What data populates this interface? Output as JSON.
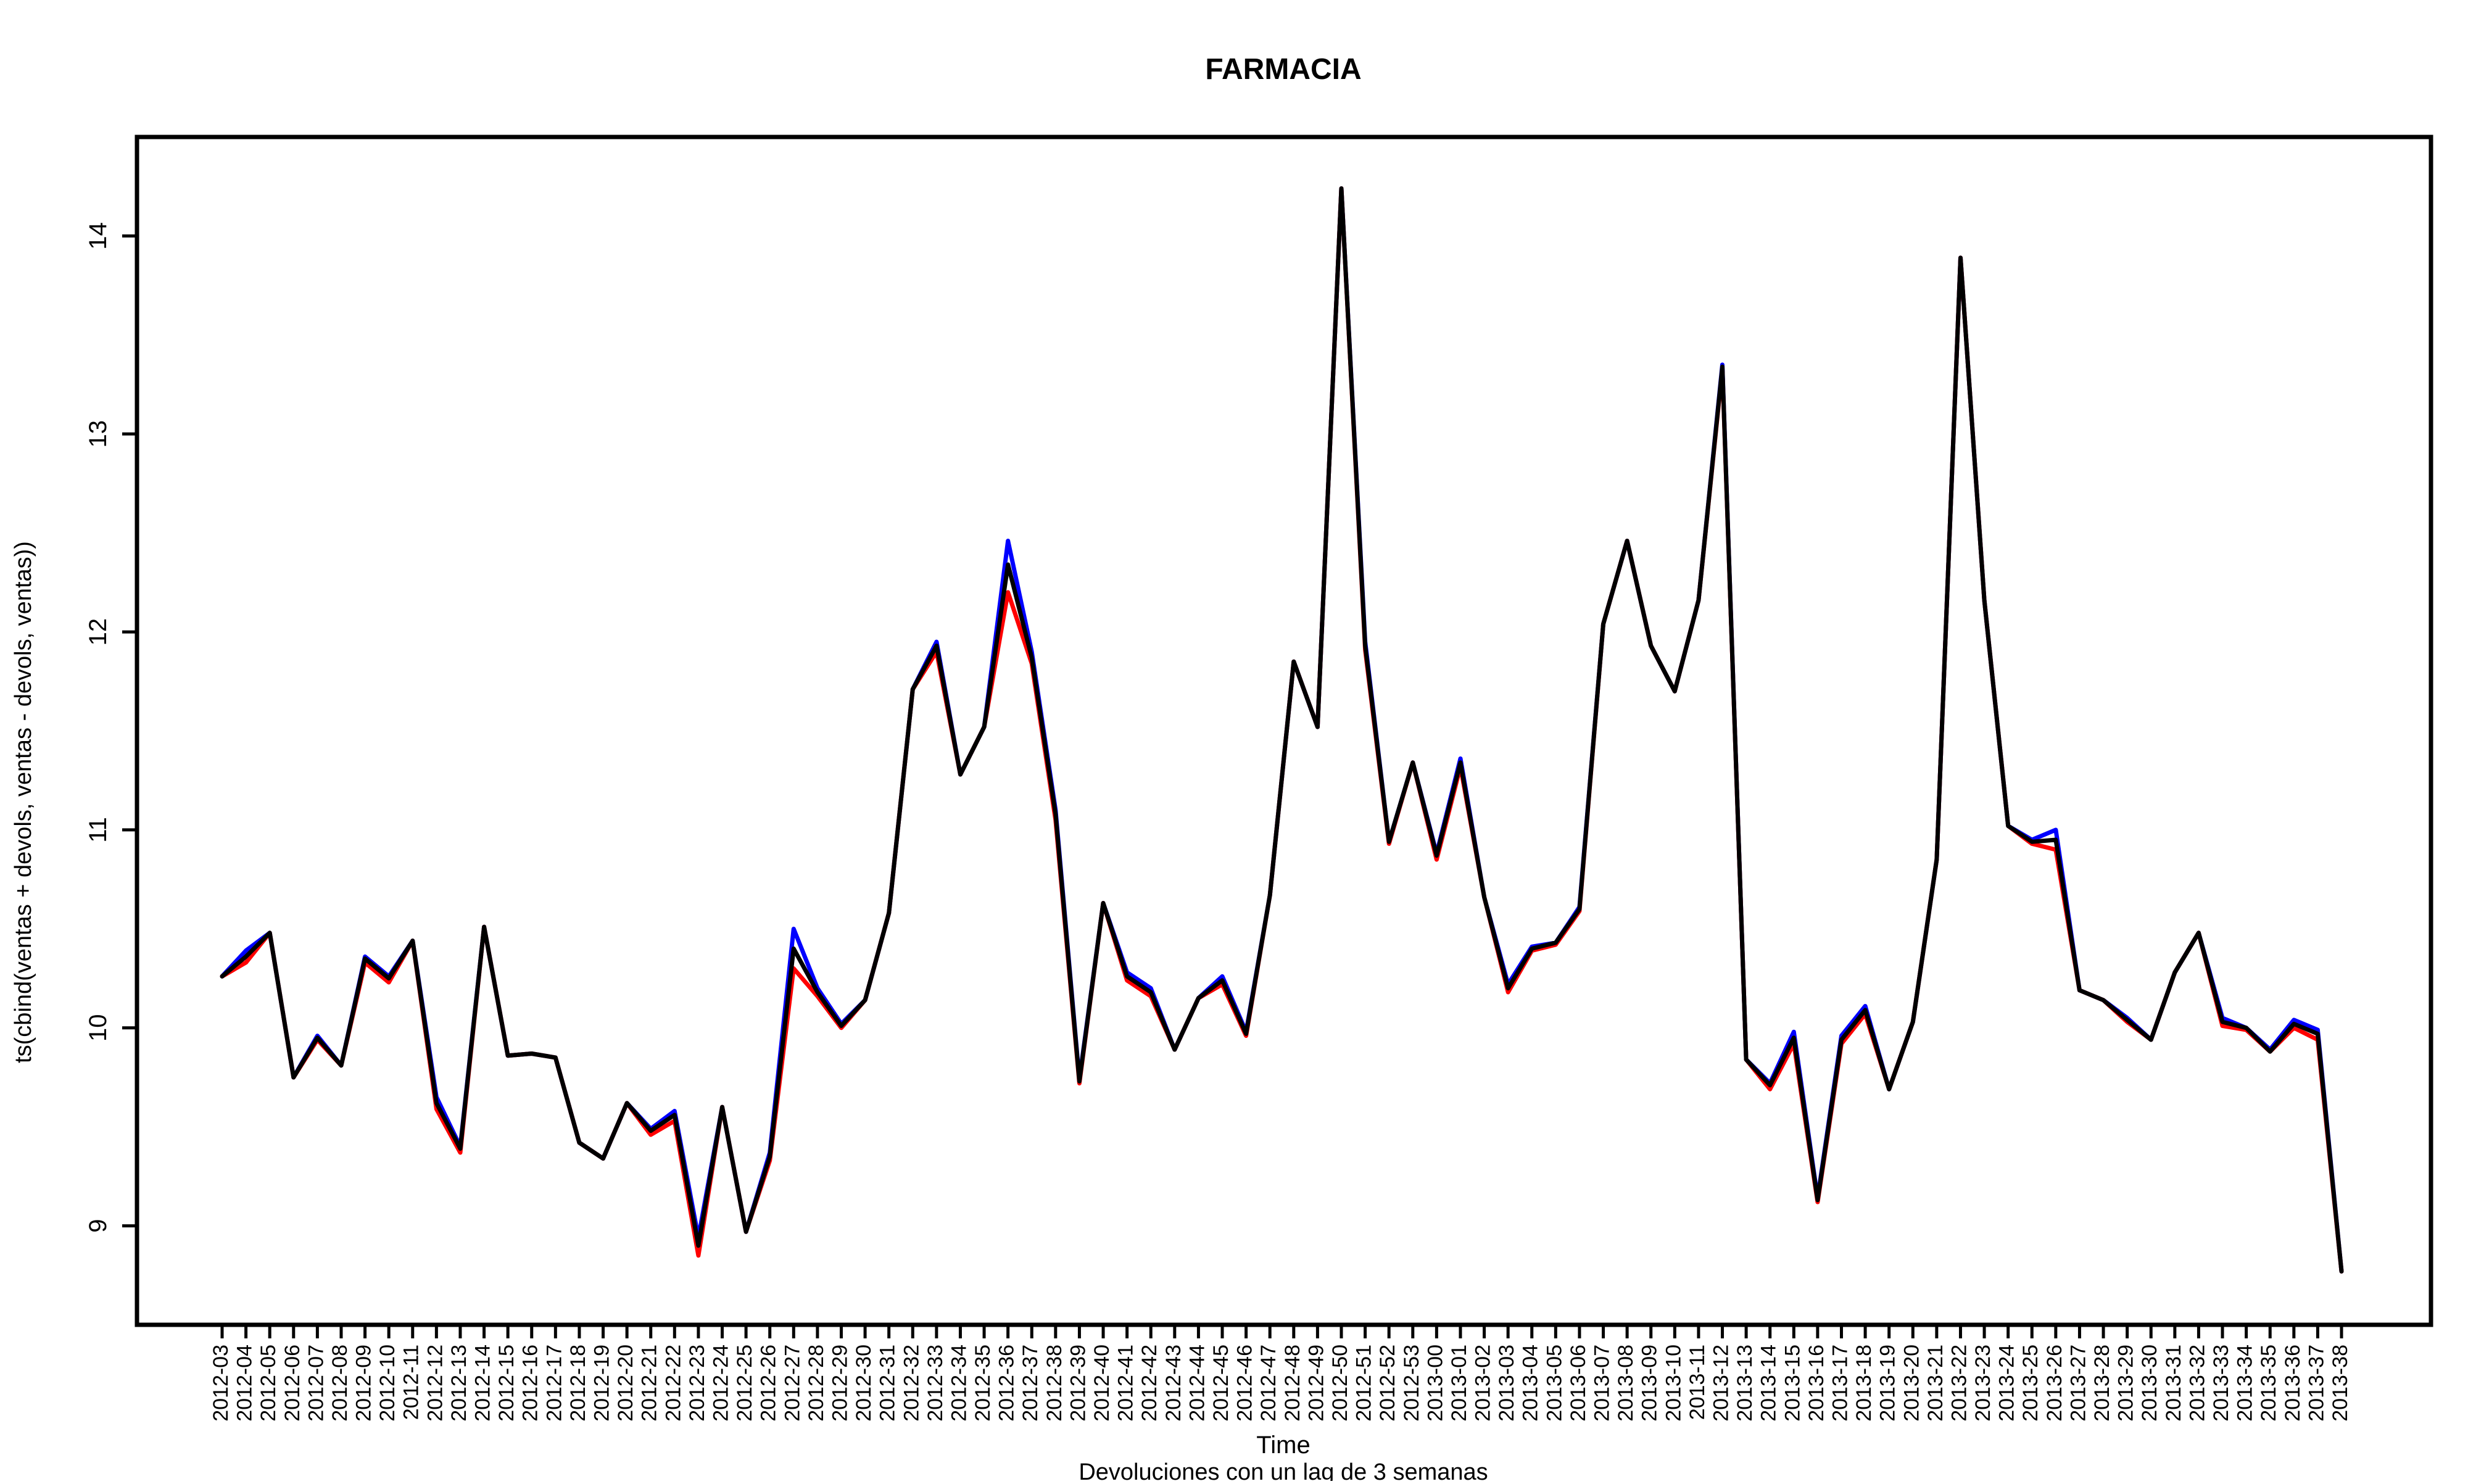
{
  "chart_data": {
    "type": "line",
    "title": "FARMACIA",
    "xlabel": "Time",
    "subtitle": "Devoluciones con un lag de 3 semanas",
    "ylabel": "ts(cbind(ventas + devols, ventas - devols, ventas))",
    "ylim": [
      8.5,
      14.5
    ],
    "yticks": [
      9,
      10,
      11,
      12,
      13,
      14
    ],
    "grid": false,
    "categories": [
      "2012-03",
      "2012-04",
      "2012-05",
      "2012-06",
      "2012-07",
      "2012-08",
      "2012-09",
      "2012-10",
      "2012-11",
      "2012-12",
      "2012-13",
      "2012-14",
      "2012-15",
      "2012-16",
      "2012-17",
      "2012-18",
      "2012-19",
      "2012-20",
      "2012-21",
      "2012-22",
      "2012-23",
      "2012-24",
      "2012-25",
      "2012-26",
      "2012-27",
      "2012-28",
      "2012-29",
      "2012-30",
      "2012-31",
      "2012-32",
      "2012-33",
      "2012-34",
      "2012-35",
      "2012-36",
      "2012-37",
      "2012-38",
      "2012-39",
      "2012-40",
      "2012-41",
      "2012-42",
      "2012-43",
      "2012-44",
      "2012-45",
      "2012-46",
      "2012-47",
      "2012-48",
      "2012-49",
      "2012-50",
      "2012-51",
      "2012-52",
      "2012-53",
      "2013-00",
      "2013-01",
      "2013-02",
      "2013-03",
      "2013-04",
      "2013-05",
      "2013-06",
      "2013-07",
      "2013-08",
      "2013-09",
      "2013-10",
      "2013-11",
      "2013-12",
      "2013-13",
      "2013-14",
      "2013-15",
      "2013-16",
      "2013-17",
      "2013-18",
      "2013-19",
      "2013-20",
      "2013-21",
      "2013-22",
      "2013-23",
      "2013-24",
      "2013-25",
      "2013-26",
      "2013-27",
      "2013-28",
      "2013-29",
      "2013-30",
      "2013-31",
      "2013-32",
      "2013-33",
      "2013-34",
      "2013-35",
      "2013-36",
      "2013-37",
      "2013-38"
    ],
    "series": [
      {
        "color": "#0000ff",
        "values": [
          10.26,
          10.39,
          10.48,
          9.75,
          9.96,
          9.81,
          10.36,
          10.26,
          10.44,
          9.65,
          9.4,
          10.51,
          9.86,
          9.87,
          9.85,
          9.42,
          9.34,
          9.62,
          9.49,
          9.58,
          8.94,
          9.6,
          8.97,
          9.37,
          10.5,
          10.2,
          10.02,
          10.14,
          10.58,
          11.71,
          11.95,
          11.28,
          11.52,
          12.46,
          11.9,
          11.1,
          9.74,
          10.63,
          10.28,
          10.2,
          9.89,
          10.15,
          10.26,
          9.98,
          10.67,
          11.85,
          11.52,
          14.24,
          11.95,
          10.94,
          11.34,
          10.88,
          11.36,
          10.66,
          10.22,
          10.41,
          10.43,
          10.61,
          12.04,
          12.46,
          11.93,
          11.7,
          12.16,
          13.35,
          9.84,
          9.72,
          9.98,
          9.14,
          9.96,
          10.11,
          9.69,
          10.03,
          10.85,
          13.89,
          12.16,
          11.02,
          10.95,
          11.0,
          10.19,
          10.14,
          10.05,
          9.94,
          10.28,
          10.48,
          10.05,
          10.0,
          9.89,
          10.04,
          9.99,
          8.77
        ]
      },
      {
        "color": "#ff0000",
        "values": [
          10.26,
          10.33,
          10.48,
          9.75,
          9.94,
          9.81,
          10.33,
          10.23,
          10.44,
          9.59,
          9.37,
          10.51,
          9.86,
          9.87,
          9.85,
          9.42,
          9.34,
          9.62,
          9.46,
          9.53,
          8.85,
          9.6,
          8.97,
          9.33,
          10.3,
          10.16,
          10.0,
          10.14,
          10.58,
          11.71,
          11.9,
          11.28,
          11.52,
          12.2,
          11.84,
          11.05,
          9.72,
          10.63,
          10.24,
          10.16,
          9.89,
          10.15,
          10.22,
          9.96,
          10.67,
          11.85,
          11.52,
          14.24,
          11.91,
          10.93,
          11.34,
          10.85,
          11.32,
          10.66,
          10.18,
          10.39,
          10.42,
          10.59,
          12.04,
          12.46,
          11.93,
          11.7,
          12.16,
          13.33,
          9.84,
          9.69,
          9.92,
          9.12,
          9.92,
          10.07,
          9.69,
          10.03,
          10.85,
          13.89,
          12.16,
          11.02,
          10.93,
          10.9,
          10.19,
          10.14,
          10.03,
          9.94,
          10.28,
          10.48,
          10.01,
          9.99,
          9.88,
          10.0,
          9.94,
          8.77
        ]
      },
      {
        "color": "#000000",
        "values": [
          10.26,
          10.36,
          10.48,
          9.75,
          9.95,
          9.81,
          10.35,
          10.25,
          10.44,
          9.62,
          9.39,
          10.51,
          9.86,
          9.87,
          9.85,
          9.42,
          9.34,
          9.62,
          9.48,
          9.56,
          8.9,
          9.6,
          8.97,
          9.35,
          10.4,
          10.18,
          10.01,
          10.14,
          10.58,
          11.71,
          11.93,
          11.28,
          11.52,
          12.34,
          11.87,
          11.08,
          9.73,
          10.63,
          10.26,
          10.18,
          9.89,
          10.15,
          10.24,
          9.97,
          10.67,
          11.85,
          11.52,
          14.24,
          11.93,
          10.94,
          11.34,
          10.87,
          11.34,
          10.66,
          10.2,
          10.4,
          10.43,
          10.6,
          12.04,
          12.46,
          11.93,
          11.7,
          12.16,
          13.34,
          9.84,
          9.71,
          9.95,
          9.13,
          9.94,
          10.09,
          9.69,
          10.03,
          10.85,
          13.89,
          12.16,
          11.02,
          10.94,
          10.95,
          10.19,
          10.14,
          10.04,
          9.94,
          10.28,
          10.48,
          10.03,
          10.0,
          9.88,
          10.02,
          9.97,
          8.77
        ]
      }
    ]
  }
}
